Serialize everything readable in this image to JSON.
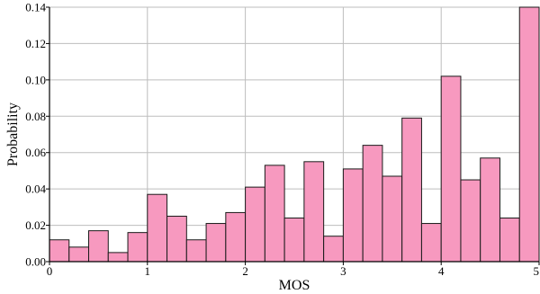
{
  "chart_data": {
    "type": "bar",
    "xlabel": "MOS",
    "ylabel": "Probability",
    "xlim": [
      0,
      5
    ],
    "ylim": [
      0,
      0.14
    ],
    "x_ticks": [
      0,
      1,
      2,
      3,
      4,
      5
    ],
    "x_tick_labels": [
      "0",
      "1",
      "2",
      "3",
      "4",
      "5"
    ],
    "y_ticks": [
      0,
      0.02,
      0.04,
      0.06,
      0.08,
      0.1,
      0.12,
      0.14
    ],
    "y_tick_labels": [
      "0.00",
      "0.02",
      "0.04",
      "0.06",
      "0.08",
      "0.10",
      "0.12",
      "0.14"
    ],
    "grid": true,
    "bin_width": 0.2,
    "bins": [
      {
        "x0": 0.0,
        "x1": 0.2,
        "value": 0.012
      },
      {
        "x0": 0.2,
        "x1": 0.4,
        "value": 0.008
      },
      {
        "x0": 0.4,
        "x1": 0.6,
        "value": 0.017
      },
      {
        "x0": 0.6,
        "x1": 0.8,
        "value": 0.005
      },
      {
        "x0": 0.8,
        "x1": 1.0,
        "value": 0.016
      },
      {
        "x0": 1.0,
        "x1": 1.2,
        "value": 0.037
      },
      {
        "x0": 1.2,
        "x1": 1.4,
        "value": 0.025
      },
      {
        "x0": 1.4,
        "x1": 1.6,
        "value": 0.012
      },
      {
        "x0": 1.6,
        "x1": 1.8,
        "value": 0.021
      },
      {
        "x0": 1.8,
        "x1": 2.0,
        "value": 0.027
      },
      {
        "x0": 2.0,
        "x1": 2.2,
        "value": 0.041
      },
      {
        "x0": 2.2,
        "x1": 2.4,
        "value": 0.053
      },
      {
        "x0": 2.4,
        "x1": 2.6,
        "value": 0.024
      },
      {
        "x0": 2.6,
        "x1": 2.8,
        "value": 0.055
      },
      {
        "x0": 2.8,
        "x1": 3.0,
        "value": 0.014
      },
      {
        "x0": 3.0,
        "x1": 3.2,
        "value": 0.051
      },
      {
        "x0": 3.2,
        "x1": 3.4,
        "value": 0.064
      },
      {
        "x0": 3.4,
        "x1": 3.6,
        "value": 0.047
      },
      {
        "x0": 3.6,
        "x1": 3.8,
        "value": 0.079
      },
      {
        "x0": 3.8,
        "x1": 4.0,
        "value": 0.021
      },
      {
        "x0": 4.0,
        "x1": 4.2,
        "value": 0.102
      },
      {
        "x0": 4.2,
        "x1": 4.4,
        "value": 0.045
      },
      {
        "x0": 4.4,
        "x1": 4.6,
        "value": 0.057
      },
      {
        "x0": 4.6,
        "x1": 4.8,
        "value": 0.024
      },
      {
        "x0": 4.8,
        "x1": 5.0,
        "value": 0.14
      }
    ],
    "colors": {
      "bar_fill": "#f799bf",
      "bar_stroke": "#1a1a1a",
      "grid": "#bdbdbd",
      "axis": "#000000"
    }
  }
}
